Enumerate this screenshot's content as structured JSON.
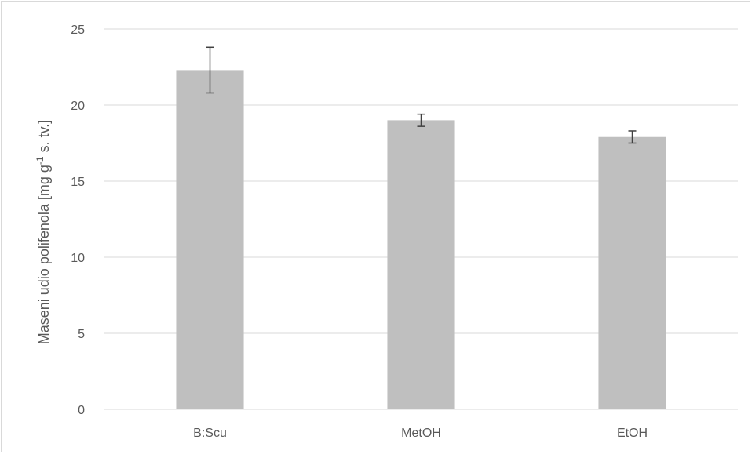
{
  "chart_data": {
    "type": "bar",
    "title": "",
    "xlabel": "",
    "ylabel": "Maseni udio polifenola [mg g",
    "ylabel_superscript": "-1",
    "ylabel_suffix": " s. tv.]",
    "categories": [
      "B:Scu",
      "MetOH",
      "EtOH"
    ],
    "values": [
      22.3,
      19.0,
      17.9
    ],
    "errors": [
      1.5,
      0.4,
      0.4
    ],
    "ylim": [
      0,
      25
    ],
    "yticks": [
      0,
      5,
      10,
      15,
      20,
      25
    ],
    "grid": true,
    "legend": "none"
  },
  "colors": {
    "bar": "#bfbfbf",
    "grid": "#d9d9d9",
    "error": "#404040",
    "text": "#595959"
  }
}
